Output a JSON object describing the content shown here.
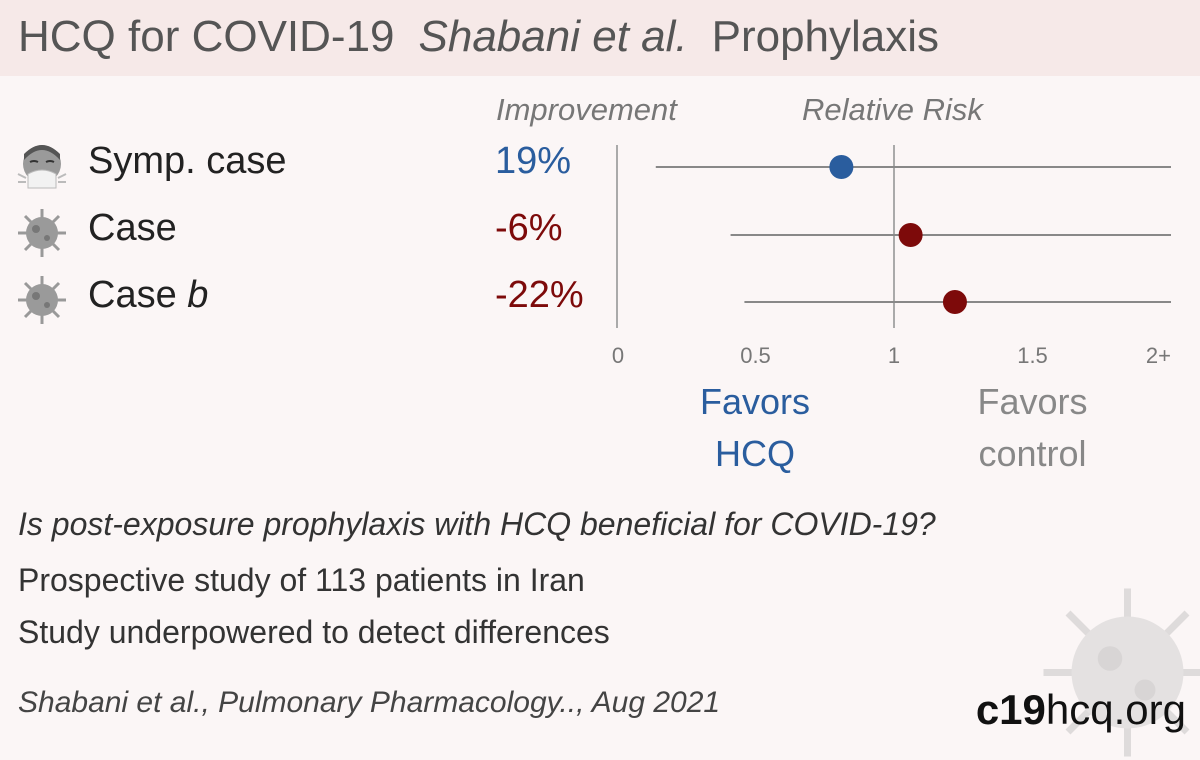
{
  "header": {
    "topic": "HCQ for COVID-19",
    "authors": "Shabani et al.",
    "type": "Prophylaxis"
  },
  "columns": {
    "improvement": "Improvement",
    "relative_risk": "Relative Risk"
  },
  "outcomes": [
    {
      "label_main": "Symp. case",
      "label_suffix": "",
      "improvement": "19%",
      "icon": "sneezing-face-icon",
      "color": "#2a5d9e"
    },
    {
      "label_main": "Case",
      "label_suffix": "",
      "improvement": "-6%",
      "icon": "virus-icon",
      "color": "#7d0a0a"
    },
    {
      "label_main": "Case ",
      "label_suffix": "b",
      "improvement": "-22%",
      "icon": "virus-icon",
      "color": "#7d0a0a"
    }
  ],
  "favors": {
    "hcq": "Favors HCQ",
    "control": "Favors control",
    "hcq_color": "#2a5d9e",
    "control_color": "#888888"
  },
  "chart_data": {
    "type": "forest",
    "x_axis": {
      "ticks": [
        0,
        0.5,
        1,
        1.5,
        2
      ],
      "tick_labels": [
        "0",
        "0.5",
        "1",
        "1.5",
        "2+"
      ],
      "xlim": [
        0,
        2
      ],
      "reference_line": 1
    },
    "series": [
      {
        "outcome": "Symp. case",
        "rr": 0.81,
        "ci_low": 0.14,
        "ci_high": 2.0,
        "color": "#2a5d9e"
      },
      {
        "outcome": "Case",
        "rr": 1.06,
        "ci_low": 0.41,
        "ci_high": 2.0,
        "color": "#7d0a0a"
      },
      {
        "outcome": "Case b",
        "rr": 1.22,
        "ci_low": 0.46,
        "ci_high": 2.0,
        "color": "#7d0a0a"
      }
    ]
  },
  "summary": {
    "question": "Is post-exposure prophylaxis with HCQ beneficial for COVID-19?",
    "design": "Prospective study of 113 patients in Iran",
    "note": "Study underpowered to detect differences"
  },
  "citation": "Shabani et al., Pulmonary Pharmacology.., Aug 2021",
  "brand": {
    "bold": "c19",
    "rest": "hcq.org"
  }
}
